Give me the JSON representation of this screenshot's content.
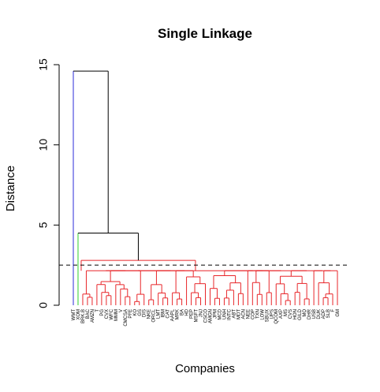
{
  "chart_data": {
    "type": "dendrogram",
    "title": "Single Linkage",
    "xlabel": "Companies",
    "ylabel": "Distance",
    "ylim": [
      0,
      15
    ],
    "y_ticks": [
      0,
      5,
      10,
      15
    ],
    "cut_height": 2.5,
    "cut_line_style": "dashed",
    "leaf_labels": [
      "WMT",
      "XOM",
      "BRK.B",
      "BAC",
      "AMZN",
      "T",
      "PG",
      "CVX",
      "WFC",
      "MMM",
      "V",
      "CMCSA",
      "PFE",
      "KO",
      "GS",
      "DIS",
      "NKE",
      "ORCL",
      "LMT",
      "IBM",
      "CAT",
      "AAPL",
      "MRK",
      "BA",
      "HD",
      "PEP",
      "MSFT",
      "JNJ",
      "CSCO",
      "AMGN",
      "JPM",
      "MCD",
      "UNH",
      "INTC",
      "ABT",
      "MDT",
      "ACN",
      "NEE",
      "COP",
      "TXN",
      "LOW",
      "SBUX",
      "UPS",
      "QCOM",
      "AXP",
      "MS",
      "CVS",
      "HON",
      "GILD",
      "MO",
      "DHR",
      "USB",
      "DUK",
      "ADP",
      "SLB",
      "F",
      "GM"
    ],
    "merges": [
      {
        "height": 14.6,
        "colors": [
          "blue",
          "black"
        ]
      },
      {
        "height": 4.5,
        "colors": [
          "green",
          "black"
        ]
      },
      {
        "height": 2.8,
        "colors": [
          "red",
          "red"
        ]
      }
    ],
    "cluster_colors": {
      "blue": "#2b2bd9",
      "green": "#2fcf2f",
      "red": "#e8262a",
      "black": "#000000"
    }
  }
}
